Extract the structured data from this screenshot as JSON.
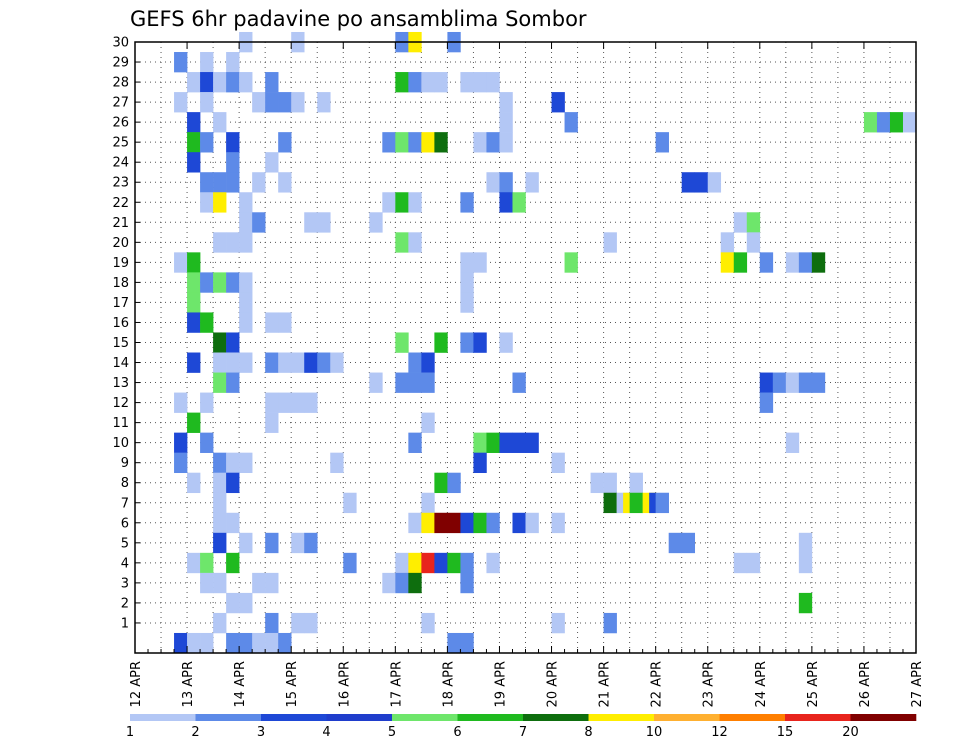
{
  "chart_data": {
    "type": "heatmap",
    "title": "GEFS 6hr padavine po ansamblima Sombor",
    "xlabel": "",
    "ylabel": "",
    "x_range": [
      "12 APR 00:00",
      "27 APR 00:00"
    ],
    "x_step_hours": 6,
    "y_range": [
      0,
      30
    ],
    "x_tick_labels": [
      "12 APR",
      "13 APR",
      "14 APR",
      "15 APR",
      "16 APR",
      "17 APR",
      "18 APR",
      "19 APR",
      "20 APR",
      "21 APR",
      "22 APR",
      "23 APR",
      "24 APR",
      "25 APR",
      "26 APR",
      "27 APR"
    ],
    "y_tick_labels": [
      "1",
      "2",
      "3",
      "4",
      "5",
      "6",
      "7",
      "8",
      "9",
      "10",
      "11",
      "12",
      "13",
      "14",
      "15",
      "16",
      "17",
      "18",
      "19",
      "20",
      "21",
      "22",
      "23",
      "24",
      "25",
      "26",
      "27",
      "28",
      "29",
      "30"
    ],
    "grid": true,
    "legend": "colorbar-bottom",
    "colorbar": {
      "tick_labels": [
        "1",
        "2",
        "3",
        "4",
        "5",
        "6",
        "7",
        "8",
        "10",
        "12",
        "15",
        "20"
      ],
      "colors": [
        "#b3c7f5",
        "#5d8ae8",
        "#1e48d6",
        "#1f3dcc",
        "#6ee66b",
        "#1fba1f",
        "#0e6e0e",
        "#ffee00",
        "#ffb030",
        "#ff7f00",
        "#e8241d",
        "#800000"
      ]
    },
    "cells": [
      {
        "x": 8,
        "y": 30,
        "v": 1
      },
      {
        "x": 12,
        "y": 30,
        "v": 1
      },
      {
        "x": 20,
        "y": 30,
        "v": 2
      },
      {
        "x": 21,
        "y": 30,
        "v": 9
      },
      {
        "x": 24,
        "y": 30,
        "v": 2
      },
      {
        "x": 3,
        "y": 29,
        "v": 2
      },
      {
        "x": 5,
        "y": 29,
        "v": 1
      },
      {
        "x": 7,
        "y": 29,
        "v": 1
      },
      {
        "x": 4,
        "y": 28,
        "v": 1
      },
      {
        "x": 5,
        "y": 28,
        "v": 3
      },
      {
        "x": 6,
        "y": 28,
        "v": 1
      },
      {
        "x": 7,
        "y": 28,
        "v": 2
      },
      {
        "x": 8,
        "y": 28,
        "v": 1
      },
      {
        "x": 10,
        "y": 28,
        "v": 2
      },
      {
        "x": 20,
        "y": 28,
        "v": 6
      },
      {
        "x": 21,
        "y": 28,
        "v": 2
      },
      {
        "x": 22,
        "y": 28,
        "v": 1
      },
      {
        "x": 23,
        "y": 28,
        "v": 1
      },
      {
        "x": 25,
        "y": 28,
        "v": 1
      },
      {
        "x": 26,
        "y": 28,
        "v": 1
      },
      {
        "x": 27,
        "y": 28,
        "v": 1
      },
      {
        "x": 3,
        "y": 27,
        "v": 1
      },
      {
        "x": 5,
        "y": 27,
        "v": 1
      },
      {
        "x": 9,
        "y": 27,
        "v": 1
      },
      {
        "x": 10,
        "y": 27,
        "v": 2
      },
      {
        "x": 11,
        "y": 27,
        "v": 2
      },
      {
        "x": 12,
        "y": 27,
        "v": 1
      },
      {
        "x": 14,
        "y": 27,
        "v": 1
      },
      {
        "x": 28,
        "y": 27,
        "v": 1
      },
      {
        "x": 32,
        "y": 27,
        "v": 3
      },
      {
        "x": 4,
        "y": 26,
        "v": 3
      },
      {
        "x": 6,
        "y": 26,
        "v": 1
      },
      {
        "x": 28,
        "y": 26,
        "v": 1
      },
      {
        "x": 33,
        "y": 26,
        "v": 2
      },
      {
        "x": 56,
        "y": 26,
        "v": 5
      },
      {
        "x": 57,
        "y": 26,
        "v": 2
      },
      {
        "x": 58,
        "y": 26,
        "v": 6
      },
      {
        "x": 59,
        "y": 26,
        "v": 1
      },
      {
        "x": 4,
        "y": 25,
        "v": 6
      },
      {
        "x": 5,
        "y": 25,
        "v": 2
      },
      {
        "x": 7,
        "y": 25,
        "v": 3
      },
      {
        "x": 11,
        "y": 25,
        "v": 2
      },
      {
        "x": 19,
        "y": 25,
        "v": 2
      },
      {
        "x": 20,
        "y": 25,
        "v": 5
      },
      {
        "x": 21,
        "y": 25,
        "v": 2
      },
      {
        "x": 22,
        "y": 25,
        "v": 9
      },
      {
        "x": 23,
        "y": 25,
        "v": 7
      },
      {
        "x": 26,
        "y": 25,
        "v": 1
      },
      {
        "x": 27,
        "y": 25,
        "v": 2
      },
      {
        "x": 28,
        "y": 25,
        "v": 1
      },
      {
        "x": 40,
        "y": 25,
        "v": 2
      },
      {
        "x": 4,
        "y": 24,
        "v": 3
      },
      {
        "x": 7,
        "y": 24,
        "v": 2
      },
      {
        "x": 10,
        "y": 24,
        "v": 1
      },
      {
        "x": 5,
        "y": 23,
        "v": 2
      },
      {
        "x": 6,
        "y": 23,
        "v": 2
      },
      {
        "x": 7,
        "y": 23,
        "v": 2
      },
      {
        "x": 9,
        "y": 23,
        "v": 1
      },
      {
        "x": 11,
        "y": 23,
        "v": 1
      },
      {
        "x": 27,
        "y": 23,
        "v": 1
      },
      {
        "x": 28,
        "y": 23,
        "v": 2
      },
      {
        "x": 30,
        "y": 23,
        "v": 1
      },
      {
        "x": 42,
        "y": 23,
        "v": 3
      },
      {
        "x": 43,
        "y": 23,
        "v": 3
      },
      {
        "x": 44,
        "y": 23,
        "v": 1
      },
      {
        "x": 5,
        "y": 22,
        "v": 1
      },
      {
        "x": 6,
        "y": 22,
        "v": 9
      },
      {
        "x": 8,
        "y": 22,
        "v": 1
      },
      {
        "x": 19,
        "y": 22,
        "v": 1
      },
      {
        "x": 20,
        "y": 22,
        "v": 6
      },
      {
        "x": 21,
        "y": 22,
        "v": 1
      },
      {
        "x": 25,
        "y": 22,
        "v": 2
      },
      {
        "x": 28,
        "y": 22,
        "v": 3
      },
      {
        "x": 29,
        "y": 22,
        "v": 5
      },
      {
        "x": 8,
        "y": 21,
        "v": 1
      },
      {
        "x": 9,
        "y": 21,
        "v": 2
      },
      {
        "x": 13,
        "y": 21,
        "v": 1
      },
      {
        "x": 14,
        "y": 21,
        "v": 1
      },
      {
        "x": 18,
        "y": 21,
        "v": 1
      },
      {
        "x": 46,
        "y": 21,
        "v": 1
      },
      {
        "x": 47,
        "y": 21,
        "v": 5
      },
      {
        "x": 6,
        "y": 20,
        "v": 1
      },
      {
        "x": 7,
        "y": 20,
        "v": 1
      },
      {
        "x": 8,
        "y": 20,
        "v": 1
      },
      {
        "x": 20,
        "y": 20,
        "v": 5
      },
      {
        "x": 21,
        "y": 20,
        "v": 1
      },
      {
        "x": 36,
        "y": 20,
        "v": 1
      },
      {
        "x": 45,
        "y": 20,
        "v": 1
      },
      {
        "x": 47,
        "y": 20,
        "v": 1
      },
      {
        "x": 3,
        "y": 19,
        "v": 1
      },
      {
        "x": 4,
        "y": 19,
        "v": 6
      },
      {
        "x": 25,
        "y": 19,
        "v": 1
      },
      {
        "x": 26,
        "y": 19,
        "v": 1
      },
      {
        "x": 33,
        "y": 19,
        "v": 5
      },
      {
        "x": 45,
        "y": 19,
        "v": 9
      },
      {
        "x": 46,
        "y": 19,
        "v": 6
      },
      {
        "x": 48,
        "y": 19,
        "v": 2
      },
      {
        "x": 50,
        "y": 19,
        "v": 1
      },
      {
        "x": 51,
        "y": 19,
        "v": 2
      },
      {
        "x": 52,
        "y": 19,
        "v": 7
      },
      {
        "x": 4,
        "y": 18,
        "v": 5
      },
      {
        "x": 5,
        "y": 18,
        "v": 2
      },
      {
        "x": 6,
        "y": 18,
        "v": 5
      },
      {
        "x": 7,
        "y": 18,
        "v": 2
      },
      {
        "x": 8,
        "y": 18,
        "v": 1
      },
      {
        "x": 25,
        "y": 18,
        "v": 1
      },
      {
        "x": 4,
        "y": 17,
        "v": 5
      },
      {
        "x": 8,
        "y": 17,
        "v": 1
      },
      {
        "x": 25,
        "y": 17,
        "v": 1
      },
      {
        "x": 4,
        "y": 16,
        "v": 3
      },
      {
        "x": 5,
        "y": 16,
        "v": 6
      },
      {
        "x": 8,
        "y": 16,
        "v": 1
      },
      {
        "x": 10,
        "y": 16,
        "v": 1
      },
      {
        "x": 11,
        "y": 16,
        "v": 1
      },
      {
        "x": 6,
        "y": 15,
        "v": 7
      },
      {
        "x": 7,
        "y": 15,
        "v": 3
      },
      {
        "x": 20,
        "y": 15,
        "v": 5
      },
      {
        "x": 23,
        "y": 15,
        "v": 6
      },
      {
        "x": 25,
        "y": 15,
        "v": 2
      },
      {
        "x": 26,
        "y": 15,
        "v": 3
      },
      {
        "x": 28,
        "y": 15,
        "v": 1
      },
      {
        "x": 4,
        "y": 14,
        "v": 3
      },
      {
        "x": 6,
        "y": 14,
        "v": 1
      },
      {
        "x": 7,
        "y": 14,
        "v": 1
      },
      {
        "x": 8,
        "y": 14,
        "v": 1
      },
      {
        "x": 10,
        "y": 14,
        "v": 2
      },
      {
        "x": 11,
        "y": 14,
        "v": 1
      },
      {
        "x": 12,
        "y": 14,
        "v": 1
      },
      {
        "x": 13,
        "y": 14,
        "v": 3
      },
      {
        "x": 14,
        "y": 14,
        "v": 2
      },
      {
        "x": 15,
        "y": 14,
        "v": 1
      },
      {
        "x": 21,
        "y": 14,
        "v": 2
      },
      {
        "x": 22,
        "y": 14,
        "v": 3
      },
      {
        "x": 6,
        "y": 13,
        "v": 5
      },
      {
        "x": 7,
        "y": 13,
        "v": 2
      },
      {
        "x": 18,
        "y": 13,
        "v": 1
      },
      {
        "x": 20,
        "y": 13,
        "v": 2
      },
      {
        "x": 21,
        "y": 13,
        "v": 2
      },
      {
        "x": 22,
        "y": 13,
        "v": 2
      },
      {
        "x": 29,
        "y": 13,
        "v": 2
      },
      {
        "x": 48,
        "y": 13,
        "v": 3
      },
      {
        "x": 49,
        "y": 13,
        "v": 2
      },
      {
        "x": 50,
        "y": 13,
        "v": 1
      },
      {
        "x": 51,
        "y": 13,
        "v": 2
      },
      {
        "x": 52,
        "y": 13,
        "v": 2
      },
      {
        "x": 3,
        "y": 12,
        "v": 1
      },
      {
        "x": 5,
        "y": 12,
        "v": 1
      },
      {
        "x": 10,
        "y": 12,
        "v": 1
      },
      {
        "x": 11,
        "y": 12,
        "v": 1
      },
      {
        "x": 12,
        "y": 12,
        "v": 1
      },
      {
        "x": 13,
        "y": 12,
        "v": 1
      },
      {
        "x": 48,
        "y": 12,
        "v": 2
      },
      {
        "x": 4,
        "y": 11,
        "v": 6
      },
      {
        "x": 10,
        "y": 11,
        "v": 1
      },
      {
        "x": 22,
        "y": 11,
        "v": 1
      },
      {
        "x": 3,
        "y": 10,
        "v": 3
      },
      {
        "x": 5,
        "y": 10,
        "v": 2
      },
      {
        "x": 21,
        "y": 10,
        "v": 2
      },
      {
        "x": 26,
        "y": 10,
        "v": 5
      },
      {
        "x": 27,
        "y": 10,
        "v": 6
      },
      {
        "x": 28,
        "y": 10,
        "v": 3
      },
      {
        "x": 29,
        "y": 10,
        "v": 3
      },
      {
        "x": 30,
        "y": 10,
        "v": 3
      },
      {
        "x": 50,
        "y": 10,
        "v": 1
      },
      {
        "x": 3,
        "y": 9,
        "v": 2
      },
      {
        "x": 6,
        "y": 9,
        "v": 2
      },
      {
        "x": 7,
        "y": 9,
        "v": 1
      },
      {
        "x": 8,
        "y": 9,
        "v": 1
      },
      {
        "x": 15,
        "y": 9,
        "v": 1
      },
      {
        "x": 26,
        "y": 9,
        "v": 3
      },
      {
        "x": 32,
        "y": 9,
        "v": 1
      },
      {
        "x": 4,
        "y": 8,
        "v": 1
      },
      {
        "x": 6,
        "y": 8,
        "v": 1
      },
      {
        "x": 7,
        "y": 8,
        "v": 3
      },
      {
        "x": 23,
        "y": 8,
        "v": 6
      },
      {
        "x": 24,
        "y": 8,
        "v": 2
      },
      {
        "x": 35,
        "y": 8,
        "v": 1
      },
      {
        "x": 36,
        "y": 8,
        "v": 1
      },
      {
        "x": 38,
        "y": 8,
        "v": 1
      },
      {
        "x": 6,
        "y": 7,
        "v": 1
      },
      {
        "x": 16,
        "y": 7,
        "v": 1
      },
      {
        "x": 22,
        "y": 7,
        "v": 1
      },
      {
        "x": 36,
        "y": 7,
        "v": 7
      },
      {
        "x": 37,
        "y": 7,
        "v": 1
      },
      {
        "x": 37.5,
        "y": 7,
        "v": 9
      },
      {
        "x": 38,
        "y": 7,
        "v": 6
      },
      {
        "x": 39,
        "y": 7,
        "v": 9
      },
      {
        "x": 39.5,
        "y": 7,
        "v": 3
      },
      {
        "x": 40,
        "y": 7,
        "v": 2
      },
      {
        "x": 6,
        "y": 6,
        "v": 1
      },
      {
        "x": 7,
        "y": 6,
        "v": 1
      },
      {
        "x": 21,
        "y": 6,
        "v": 1
      },
      {
        "x": 22,
        "y": 6,
        "v": 9
      },
      {
        "x": 23,
        "y": 6,
        "v": 20
      },
      {
        "x": 24,
        "y": 6,
        "v": 20
      },
      {
        "x": 25,
        "y": 6,
        "v": 3
      },
      {
        "x": 26,
        "y": 6,
        "v": 6
      },
      {
        "x": 27,
        "y": 6,
        "v": 2
      },
      {
        "x": 29,
        "y": 6,
        "v": 3
      },
      {
        "x": 30,
        "y": 6,
        "v": 1
      },
      {
        "x": 32,
        "y": 6,
        "v": 1
      },
      {
        "x": 6,
        "y": 5,
        "v": 3
      },
      {
        "x": 8,
        "y": 5,
        "v": 1
      },
      {
        "x": 10,
        "y": 5,
        "v": 2
      },
      {
        "x": 12,
        "y": 5,
        "v": 1
      },
      {
        "x": 13,
        "y": 5,
        "v": 2
      },
      {
        "x": 41,
        "y": 5,
        "v": 2
      },
      {
        "x": 42,
        "y": 5,
        "v": 2
      },
      {
        "x": 51,
        "y": 5,
        "v": 1
      },
      {
        "x": 4,
        "y": 4,
        "v": 1
      },
      {
        "x": 5,
        "y": 4,
        "v": 5
      },
      {
        "x": 7,
        "y": 4,
        "v": 6
      },
      {
        "x": 16,
        "y": 4,
        "v": 2
      },
      {
        "x": 20,
        "y": 4,
        "v": 1
      },
      {
        "x": 21,
        "y": 4,
        "v": 9
      },
      {
        "x": 22,
        "y": 4,
        "v": 15
      },
      {
        "x": 23,
        "y": 4,
        "v": 3
      },
      {
        "x": 24,
        "y": 4,
        "v": 6
      },
      {
        "x": 25,
        "y": 4,
        "v": 2
      },
      {
        "x": 27,
        "y": 4,
        "v": 1
      },
      {
        "x": 46,
        "y": 4,
        "v": 1
      },
      {
        "x": 47,
        "y": 4,
        "v": 1
      },
      {
        "x": 51,
        "y": 4,
        "v": 1
      },
      {
        "x": 5,
        "y": 3,
        "v": 1
      },
      {
        "x": 6,
        "y": 3,
        "v": 1
      },
      {
        "x": 9,
        "y": 3,
        "v": 1
      },
      {
        "x": 10,
        "y": 3,
        "v": 1
      },
      {
        "x": 19,
        "y": 3,
        "v": 1
      },
      {
        "x": 20,
        "y": 3,
        "v": 2
      },
      {
        "x": 21,
        "y": 3,
        "v": 7
      },
      {
        "x": 25,
        "y": 3,
        "v": 2
      },
      {
        "x": 7,
        "y": 2,
        "v": 1
      },
      {
        "x": 8,
        "y": 2,
        "v": 1
      },
      {
        "x": 51,
        "y": 2,
        "v": 6
      },
      {
        "x": 6,
        "y": 1,
        "v": 1
      },
      {
        "x": 10,
        "y": 1,
        "v": 2
      },
      {
        "x": 12,
        "y": 1,
        "v": 1
      },
      {
        "x": 13,
        "y": 1,
        "v": 1
      },
      {
        "x": 22,
        "y": 1,
        "v": 1
      },
      {
        "x": 32,
        "y": 1,
        "v": 1
      },
      {
        "x": 36,
        "y": 1,
        "v": 2
      },
      {
        "x": 3,
        "y": 0,
        "v": 3
      },
      {
        "x": 4,
        "y": 0,
        "v": 1
      },
      {
        "x": 5,
        "y": 0,
        "v": 1
      },
      {
        "x": 7,
        "y": 0,
        "v": 2
      },
      {
        "x": 8,
        "y": 0,
        "v": 2
      },
      {
        "x": 9,
        "y": 0,
        "v": 1
      },
      {
        "x": 10,
        "y": 0,
        "v": 1
      },
      {
        "x": 11,
        "y": 0,
        "v": 2
      },
      {
        "x": 24,
        "y": 0,
        "v": 2
      },
      {
        "x": 25,
        "y": 0,
        "v": 2
      }
    ]
  }
}
